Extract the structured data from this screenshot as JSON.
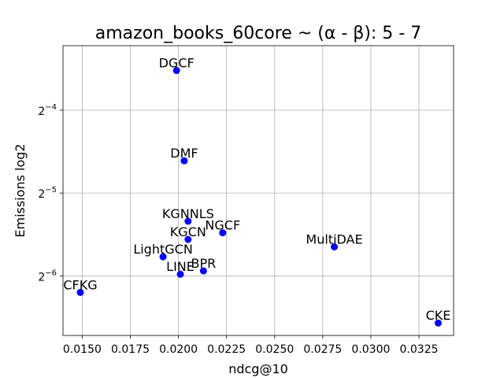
{
  "chart_data": {
    "type": "scatter",
    "title": "amazon_books_60core ~ (α - β): 5 - 7",
    "xlabel": "ndcg@10",
    "ylabel": "Emissions log2",
    "xlim": [
      0.014,
      0.0343
    ],
    "ylim_log2": [
      -6.72,
      -3.22
    ],
    "yscale": "log2",
    "grid": true,
    "marker_color": "#0000ff",
    "x_ticks": [
      {
        "value": 0.015,
        "label": "0.0150"
      },
      {
        "value": 0.0175,
        "label": "0.0175"
      },
      {
        "value": 0.02,
        "label": "0.0200"
      },
      {
        "value": 0.0225,
        "label": "0.0225"
      },
      {
        "value": 0.025,
        "label": "0.0250"
      },
      {
        "value": 0.0275,
        "label": "0.0275"
      },
      {
        "value": 0.03,
        "label": "0.0300"
      },
      {
        "value": 0.0325,
        "label": "0.0325"
      }
    ],
    "y_ticks": [
      {
        "exp": -4,
        "base": "2",
        "sup": "−4"
      },
      {
        "exp": -5,
        "base": "2",
        "sup": "−5"
      },
      {
        "exp": -6,
        "base": "2",
        "sup": "−6"
      }
    ],
    "points": [
      {
        "label": "DGCF",
        "x": 0.0199,
        "log2y": -3.52
      },
      {
        "label": "DMF",
        "x": 0.0203,
        "log2y": -4.61
      },
      {
        "label": "KGNNLS",
        "x": 0.0205,
        "log2y": -5.34
      },
      {
        "label": "NGCF",
        "x": 0.0223,
        "log2y": -5.48
      },
      {
        "label": "KGCN",
        "x": 0.0205,
        "log2y": -5.56
      },
      {
        "label": "MultiDAE",
        "x": 0.0281,
        "log2y": -5.65
      },
      {
        "label": "LightGCN",
        "x": 0.0192,
        "log2y": -5.77
      },
      {
        "label": "BPR",
        "x": 0.0213,
        "log2y": -5.94
      },
      {
        "label": "LINE",
        "x": 0.0201,
        "log2y": -5.98
      },
      {
        "label": "CFKG",
        "x": 0.0149,
        "log2y": -6.2
      },
      {
        "label": "CKE",
        "x": 0.0335,
        "log2y": -6.57
      }
    ]
  }
}
